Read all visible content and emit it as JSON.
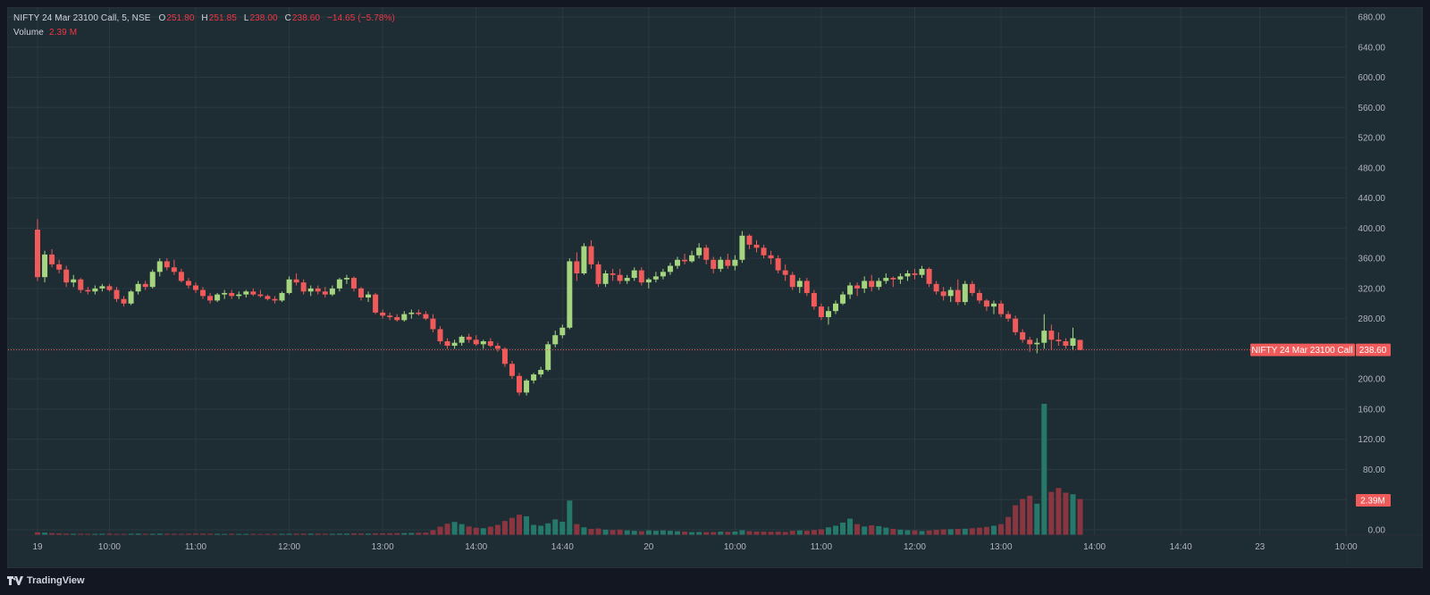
{
  "legend": {
    "symbol": "NIFTY 24 Mar 23100 Call, 5, NSE",
    "o_label": "O",
    "o_value": "251.80",
    "h_label": "H",
    "h_value": "251.85",
    "l_label": "L",
    "l_value": "238.00",
    "c_label": "C",
    "c_value": "238.60",
    "change": "−14.65 (−5.78%)",
    "volume_label": "Volume",
    "volume_value": "2.39 M"
  },
  "price_badge": {
    "name": "NIFTY 24 Mar 23100 Call",
    "value": "238.60"
  },
  "volume_badge": "2.39M",
  "brand": "TradingView",
  "colors": {
    "up": "#a5d67f",
    "down": "#f05a5a",
    "vol_up": "#26786b",
    "vol_down": "#8b3540",
    "bg": "#1e2c33",
    "grid": "#2a3a42"
  },
  "chart_data": {
    "type": "candlestick",
    "y_axis": {
      "min": 0,
      "max": 680,
      "ticks": [
        "680.00",
        "640.00",
        "600.00",
        "560.00",
        "520.00",
        "480.00",
        "440.00",
        "400.00",
        "360.00",
        "320.00",
        "280.00",
        "240.00",
        "200.00",
        "160.00",
        "120.00",
        "80.00",
        "40.00",
        "0.00"
      ]
    },
    "x_ticks": [
      "19",
      "10:00",
      "11:00",
      "12:00",
      "13:00",
      "14:00",
      "14:40",
      "20",
      "10:00",
      "11:00",
      "12:00",
      "13:00",
      "14:00",
      "14:40",
      "23",
      "10:00"
    ],
    "last_price": 238.6,
    "candles": [
      [
        398,
        412,
        330,
        335,
        3.6
      ],
      [
        335,
        370,
        328,
        365,
        3.2
      ],
      [
        365,
        372,
        348,
        352,
        2.5
      ],
      [
        352,
        358,
        340,
        345,
        2.2
      ],
      [
        345,
        350,
        322,
        328,
        2.0
      ],
      [
        328,
        338,
        322,
        332,
        1.8
      ],
      [
        332,
        334,
        314,
        318,
        1.8
      ],
      [
        318,
        322,
        312,
        316,
        1.6
      ],
      [
        316,
        324,
        312,
        320,
        1.7
      ],
      [
        320,
        326,
        316,
        323,
        1.8
      ],
      [
        323,
        326,
        316,
        318,
        1.9
      ],
      [
        318,
        322,
        302,
        306,
        1.6
      ],
      [
        306,
        310,
        296,
        300,
        1.6
      ],
      [
        300,
        318,
        298,
        316,
        1.8
      ],
      [
        316,
        330,
        312,
        326,
        2.0
      ],
      [
        326,
        330,
        318,
        322,
        1.7
      ],
      [
        322,
        345,
        320,
        342,
        1.7
      ],
      [
        342,
        360,
        336,
        356,
        2.0
      ],
      [
        356,
        360,
        344,
        348,
        1.8
      ],
      [
        348,
        358,
        338,
        342,
        1.7
      ],
      [
        342,
        346,
        328,
        330,
        1.6
      ],
      [
        330,
        334,
        320,
        324,
        1.8
      ],
      [
        324,
        328,
        314,
        318,
        1.9
      ],
      [
        318,
        322,
        306,
        310,
        1.9
      ],
      [
        310,
        314,
        300,
        304,
        1.8
      ],
      [
        304,
        314,
        302,
        312,
        1.7
      ],
      [
        312,
        318,
        306,
        314,
        1.6
      ],
      [
        314,
        318,
        306,
        310,
        1.7
      ],
      [
        310,
        316,
        306,
        312,
        1.6
      ],
      [
        312,
        318,
        308,
        316,
        1.6
      ],
      [
        316,
        320,
        310,
        312,
        1.6
      ],
      [
        312,
        318,
        308,
        310,
        1.5
      ],
      [
        310,
        312,
        304,
        306,
        1.6
      ],
      [
        306,
        310,
        300,
        304,
        1.6
      ],
      [
        304,
        316,
        302,
        314,
        1.7
      ],
      [
        314,
        336,
        312,
        332,
        1.8
      ],
      [
        332,
        340,
        324,
        328,
        1.9
      ],
      [
        328,
        332,
        312,
        316,
        2.0
      ],
      [
        316,
        324,
        310,
        320,
        2.0
      ],
      [
        320,
        324,
        312,
        316,
        1.9
      ],
      [
        316,
        322,
        308,
        312,
        1.8
      ],
      [
        312,
        324,
        310,
        320,
        1.7
      ],
      [
        320,
        334,
        316,
        332,
        1.9
      ],
      [
        332,
        338,
        326,
        334,
        2.0
      ],
      [
        334,
        336,
        316,
        320,
        2.2
      ],
      [
        320,
        322,
        304,
        308,
        2.1
      ],
      [
        308,
        316,
        302,
        312,
        2.0
      ],
      [
        312,
        314,
        286,
        288,
        2.2
      ],
      [
        288,
        292,
        280,
        284,
        2.3
      ],
      [
        284,
        288,
        278,
        282,
        2.4
      ],
      [
        282,
        286,
        276,
        278,
        2.5
      ],
      [
        278,
        290,
        276,
        286,
        2.6
      ],
      [
        286,
        292,
        280,
        288,
        2.8
      ],
      [
        288,
        292,
        284,
        286,
        3.0
      ],
      [
        286,
        290,
        278,
        280,
        3.2
      ],
      [
        280,
        286,
        262,
        266,
        6.2
      ],
      [
        266,
        270,
        246,
        250,
        10.8
      ],
      [
        250,
        254,
        240,
        244,
        14.5
      ],
      [
        244,
        252,
        240,
        248,
        16.8
      ],
      [
        248,
        258,
        244,
        256,
        14.0
      ],
      [
        256,
        260,
        248,
        252,
        11.0
      ],
      [
        252,
        258,
        244,
        246,
        9.4
      ],
      [
        246,
        252,
        240,
        250,
        8.8
      ],
      [
        250,
        254,
        242,
        244,
        10.8
      ],
      [
        244,
        248,
        236,
        240,
        13.0
      ],
      [
        240,
        242,
        216,
        220,
        18.0
      ],
      [
        220,
        224,
        200,
        204,
        22.0
      ],
      [
        204,
        208,
        178,
        182,
        26.0
      ],
      [
        182,
        200,
        178,
        198,
        24.0
      ],
      [
        198,
        208,
        194,
        206,
        13.0
      ],
      [
        206,
        216,
        202,
        212,
        12.0
      ],
      [
        212,
        250,
        210,
        246,
        15.0
      ],
      [
        246,
        264,
        242,
        258,
        20.0
      ],
      [
        258,
        272,
        254,
        268,
        17.0
      ],
      [
        268,
        360,
        266,
        356,
        44.0
      ],
      [
        356,
        368,
        330,
        340,
        14.0
      ],
      [
        340,
        380,
        338,
        376,
        10.0
      ],
      [
        376,
        384,
        346,
        352,
        8.0
      ],
      [
        352,
        356,
        322,
        326,
        8.5
      ],
      [
        326,
        344,
        322,
        340,
        7.0
      ],
      [
        340,
        346,
        330,
        338,
        6.5
      ],
      [
        338,
        346,
        326,
        330,
        7.0
      ],
      [
        330,
        338,
        326,
        334,
        6.0
      ],
      [
        334,
        348,
        330,
        344,
        5.5
      ],
      [
        344,
        348,
        324,
        328,
        5.0
      ],
      [
        328,
        334,
        320,
        332,
        6.0
      ],
      [
        332,
        342,
        328,
        336,
        5.5
      ],
      [
        336,
        346,
        332,
        342,
        6.0
      ],
      [
        342,
        354,
        338,
        350,
        5.5
      ],
      [
        350,
        362,
        346,
        358,
        5.0
      ],
      [
        358,
        366,
        352,
        356,
        4.5
      ],
      [
        356,
        370,
        354,
        364,
        3.8
      ],
      [
        364,
        380,
        360,
        374,
        4.0
      ],
      [
        374,
        378,
        352,
        358,
        3.8
      ],
      [
        358,
        362,
        340,
        346,
        3.9
      ],
      [
        346,
        362,
        342,
        358,
        4.5
      ],
      [
        358,
        366,
        346,
        350,
        4.2
      ],
      [
        350,
        364,
        344,
        358,
        4.6
      ],
      [
        358,
        396,
        354,
        390,
        6.2
      ],
      [
        390,
        392,
        372,
        378,
        5.0
      ],
      [
        378,
        384,
        368,
        374,
        4.5
      ],
      [
        374,
        378,
        360,
        364,
        4.4
      ],
      [
        364,
        370,
        352,
        360,
        4.2
      ],
      [
        360,
        364,
        340,
        344,
        4.4
      ],
      [
        344,
        352,
        330,
        338,
        4.0
      ],
      [
        338,
        342,
        318,
        322,
        5.5
      ],
      [
        322,
        334,
        314,
        330,
        6.0
      ],
      [
        330,
        334,
        310,
        314,
        5.5
      ],
      [
        314,
        318,
        292,
        296,
        6.5
      ],
      [
        296,
        300,
        278,
        282,
        7.5
      ],
      [
        282,
        296,
        272,
        290,
        10.0
      ],
      [
        290,
        304,
        286,
        300,
        12.0
      ],
      [
        300,
        316,
        298,
        312,
        16.0
      ],
      [
        312,
        328,
        306,
        324,
        21.0
      ],
      [
        324,
        328,
        310,
        320,
        14.0
      ],
      [
        320,
        336,
        314,
        330,
        11.0
      ],
      [
        330,
        338,
        316,
        322,
        12.5
      ],
      [
        322,
        334,
        318,
        330,
        11.5
      ],
      [
        330,
        340,
        326,
        334,
        9.5
      ],
      [
        334,
        336,
        322,
        332,
        8.0
      ],
      [
        332,
        340,
        326,
        336,
        7.0
      ],
      [
        336,
        344,
        330,
        340,
        6.2
      ],
      [
        340,
        346,
        332,
        338,
        6.0
      ],
      [
        338,
        350,
        334,
        346,
        5.2
      ],
      [
        346,
        348,
        322,
        326,
        5.8
      ],
      [
        326,
        330,
        312,
        316,
        6.8
      ],
      [
        316,
        322,
        304,
        310,
        7.4
      ],
      [
        310,
        322,
        302,
        318,
        7.6
      ],
      [
        318,
        332,
        298,
        302,
        8.0
      ],
      [
        302,
        330,
        298,
        326,
        8.2
      ],
      [
        326,
        330,
        310,
        314,
        8.8
      ],
      [
        314,
        318,
        300,
        304,
        9.5
      ],
      [
        304,
        306,
        290,
        296,
        10.5
      ],
      [
        296,
        304,
        286,
        300,
        12.0
      ],
      [
        300,
        304,
        282,
        286,
        14.0
      ],
      [
        286,
        290,
        276,
        280,
        23.0
      ],
      [
        280,
        284,
        258,
        262,
        38.0
      ],
      [
        262,
        266,
        248,
        252,
        46.0
      ],
      [
        252,
        256,
        236,
        246,
        50.0
      ],
      [
        246,
        254,
        234,
        248,
        40.0
      ],
      [
        248,
        286,
        240,
        264,
        167.0
      ],
      [
        264,
        272,
        238,
        252,
        55.0
      ],
      [
        252,
        262,
        244,
        250,
        60.0
      ],
      [
        250,
        254,
        240,
        244,
        54.0
      ],
      [
        244,
        268,
        238,
        254,
        52.0
      ],
      [
        251.8,
        251.85,
        238,
        238.6,
        46.0
      ]
    ]
  }
}
